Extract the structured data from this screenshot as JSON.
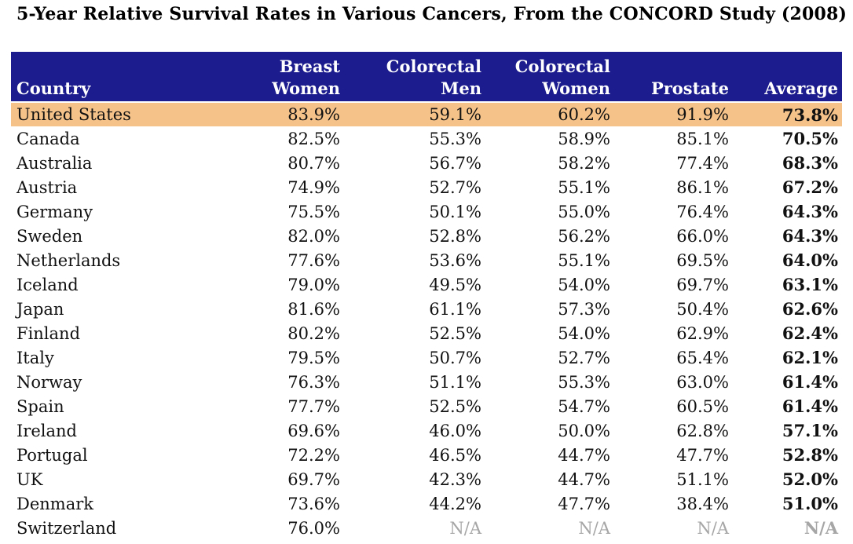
{
  "title": "5-Year Relative Survival Rates in Various Cancers, From the CONCORD Study (2008)",
  "colors": {
    "header_bg": "#1c1c8e",
    "header_text": "#ffffff",
    "highlight_row_bg": "#f5c28a",
    "na_text": "#a6a6a6",
    "body_text": "#111111"
  },
  "table": {
    "columns": [
      {
        "line1": "",
        "line2": "Country",
        "align": "left"
      },
      {
        "line1": "Breast",
        "line2": "Women",
        "align": "right"
      },
      {
        "line1": "Colorectal",
        "line2": "Men",
        "align": "right"
      },
      {
        "line1": "Colorectal",
        "line2": "Women",
        "align": "right"
      },
      {
        "line1": "",
        "line2": "Prostate",
        "align": "right"
      },
      {
        "line1": "",
        "line2": "Average",
        "align": "right"
      }
    ],
    "rows": [
      {
        "country": "United States",
        "breast_women": "83.9%",
        "colorectal_men": "59.1%",
        "colorectal_women": "60.2%",
        "prostate": "91.9%",
        "average": "73.8%",
        "highlighted": true
      },
      {
        "country": "Canada",
        "breast_women": "82.5%",
        "colorectal_men": "55.3%",
        "colorectal_women": "58.9%",
        "prostate": "85.1%",
        "average": "70.5%",
        "highlighted": false
      },
      {
        "country": "Australia",
        "breast_women": "80.7%",
        "colorectal_men": "56.7%",
        "colorectal_women": "58.2%",
        "prostate": "77.4%",
        "average": "68.3%",
        "highlighted": false
      },
      {
        "country": "Austria",
        "breast_women": "74.9%",
        "colorectal_men": "52.7%",
        "colorectal_women": "55.1%",
        "prostate": "86.1%",
        "average": "67.2%",
        "highlighted": false
      },
      {
        "country": "Germany",
        "breast_women": "75.5%",
        "colorectal_men": "50.1%",
        "colorectal_women": "55.0%",
        "prostate": "76.4%",
        "average": "64.3%",
        "highlighted": false
      },
      {
        "country": "Sweden",
        "breast_women": "82.0%",
        "colorectal_men": "52.8%",
        "colorectal_women": "56.2%",
        "prostate": "66.0%",
        "average": "64.3%",
        "highlighted": false
      },
      {
        "country": "Netherlands",
        "breast_women": "77.6%",
        "colorectal_men": "53.6%",
        "colorectal_women": "55.1%",
        "prostate": "69.5%",
        "average": "64.0%",
        "highlighted": false
      },
      {
        "country": "Iceland",
        "breast_women": "79.0%",
        "colorectal_men": "49.5%",
        "colorectal_women": "54.0%",
        "prostate": "69.7%",
        "average": "63.1%",
        "highlighted": false
      },
      {
        "country": "Japan",
        "breast_women": "81.6%",
        "colorectal_men": "61.1%",
        "colorectal_women": "57.3%",
        "prostate": "50.4%",
        "average": "62.6%",
        "highlighted": false
      },
      {
        "country": "Finland",
        "breast_women": "80.2%",
        "colorectal_men": "52.5%",
        "colorectal_women": "54.0%",
        "prostate": "62.9%",
        "average": "62.4%",
        "highlighted": false
      },
      {
        "country": "Italy",
        "breast_women": "79.5%",
        "colorectal_men": "50.7%",
        "colorectal_women": "52.7%",
        "prostate": "65.4%",
        "average": "62.1%",
        "highlighted": false
      },
      {
        "country": "Norway",
        "breast_women": "76.3%",
        "colorectal_men": "51.1%",
        "colorectal_women": "55.3%",
        "prostate": "63.0%",
        "average": "61.4%",
        "highlighted": false
      },
      {
        "country": "Spain",
        "breast_women": "77.7%",
        "colorectal_men": "52.5%",
        "colorectal_women": "54.7%",
        "prostate": "60.5%",
        "average": "61.4%",
        "highlighted": false
      },
      {
        "country": "Ireland",
        "breast_women": "69.6%",
        "colorectal_men": "46.0%",
        "colorectal_women": "50.0%",
        "prostate": "62.8%",
        "average": "57.1%",
        "highlighted": false
      },
      {
        "country": "Portugal",
        "breast_women": "72.2%",
        "colorectal_men": "46.5%",
        "colorectal_women": "44.7%",
        "prostate": "47.7%",
        "average": "52.8%",
        "highlighted": false
      },
      {
        "country": "UK",
        "breast_women": "69.7%",
        "colorectal_men": "42.3%",
        "colorectal_women": "44.7%",
        "prostate": "51.1%",
        "average": "52.0%",
        "highlighted": false
      },
      {
        "country": "Denmark",
        "breast_women": "73.6%",
        "colorectal_men": "44.2%",
        "colorectal_women": "47.7%",
        "prostate": "38.4%",
        "average": "51.0%",
        "highlighted": false
      },
      {
        "country": "Switzerland",
        "breast_women": "76.0%",
        "colorectal_men": "N/A",
        "colorectal_women": "N/A",
        "prostate": "N/A",
        "average": "N/A",
        "highlighted": false
      }
    ]
  },
  "chart_data": {
    "type": "table",
    "title": "5-Year Relative Survival Rates in Various Cancers, From the CONCORD Study (2008)",
    "columns": [
      "Country",
      "Breast Women",
      "Colorectal Men",
      "Colorectal Women",
      "Prostate",
      "Average"
    ],
    "unit": "percent",
    "highlighted_row": "United States",
    "rows": [
      [
        "United States",
        83.9,
        59.1,
        60.2,
        91.9,
        73.8
      ],
      [
        "Canada",
        82.5,
        55.3,
        58.9,
        85.1,
        70.5
      ],
      [
        "Australia",
        80.7,
        56.7,
        58.2,
        77.4,
        68.3
      ],
      [
        "Austria",
        74.9,
        52.7,
        55.1,
        86.1,
        67.2
      ],
      [
        "Germany",
        75.5,
        50.1,
        55.0,
        76.4,
        64.3
      ],
      [
        "Sweden",
        82.0,
        52.8,
        56.2,
        66.0,
        64.3
      ],
      [
        "Netherlands",
        77.6,
        53.6,
        55.1,
        69.5,
        64.0
      ],
      [
        "Iceland",
        79.0,
        49.5,
        54.0,
        69.7,
        63.1
      ],
      [
        "Japan",
        81.6,
        61.1,
        57.3,
        50.4,
        62.6
      ],
      [
        "Finland",
        80.2,
        52.5,
        54.0,
        62.9,
        62.4
      ],
      [
        "Italy",
        79.5,
        50.7,
        52.7,
        65.4,
        62.1
      ],
      [
        "Norway",
        76.3,
        51.1,
        55.3,
        63.0,
        61.4
      ],
      [
        "Spain",
        77.7,
        52.5,
        54.7,
        60.5,
        61.4
      ],
      [
        "Ireland",
        69.6,
        46.0,
        50.0,
        62.8,
        57.1
      ],
      [
        "Portugal",
        72.2,
        46.5,
        44.7,
        47.7,
        52.8
      ],
      [
        "UK",
        69.7,
        42.3,
        44.7,
        51.1,
        52.0
      ],
      [
        "Denmark",
        73.6,
        44.2,
        47.7,
        38.4,
        51.0
      ],
      [
        "Switzerland",
        76.0,
        null,
        null,
        null,
        null
      ]
    ]
  }
}
